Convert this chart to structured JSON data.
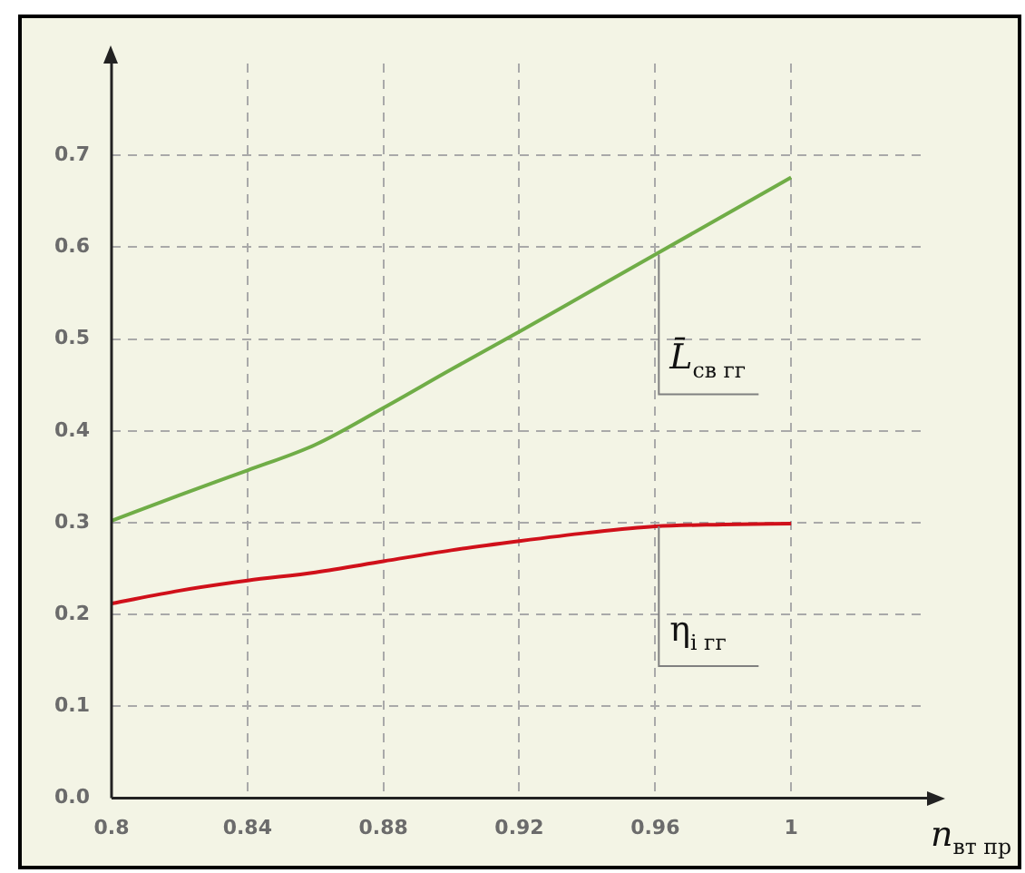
{
  "chart_data": {
    "type": "line",
    "xlabel": "n$_{вт пр}$",
    "x": [
      0.8,
      0.82,
      0.84,
      0.86,
      0.88,
      0.9,
      0.92,
      0.94,
      0.96,
      0.98,
      1
    ],
    "series": [
      {
        "name": "L̄$_{св гг}$",
        "color": "#70ad47",
        "values": [
          0.302,
          0.33,
          0.357,
          0.385,
          0.425,
          0.467,
          0.508,
          0.55,
          0.592,
          0.634,
          0.676
        ]
      },
      {
        "name": "η$_{i гг}$",
        "color": "#d0101a",
        "values": [
          0.212,
          0.226,
          0.237,
          0.246,
          0.258,
          0.27,
          0.28,
          0.289,
          0.296,
          0.298,
          0.299
        ]
      }
    ],
    "xlim": [
      0.8,
      1.04
    ],
    "ylim": [
      0,
      0.8
    ],
    "xticks": [
      0.8,
      0.84,
      0.88,
      0.92,
      0.96,
      1
    ],
    "yticks": [
      {
        "value": 0,
        "label": "0.0"
      },
      0.1,
      0.2,
      0.3,
      0.4,
      0.5,
      0.6,
      0.7
    ],
    "grid": true,
    "legend": false,
    "marker": "none",
    "line_style": "solid"
  }
}
